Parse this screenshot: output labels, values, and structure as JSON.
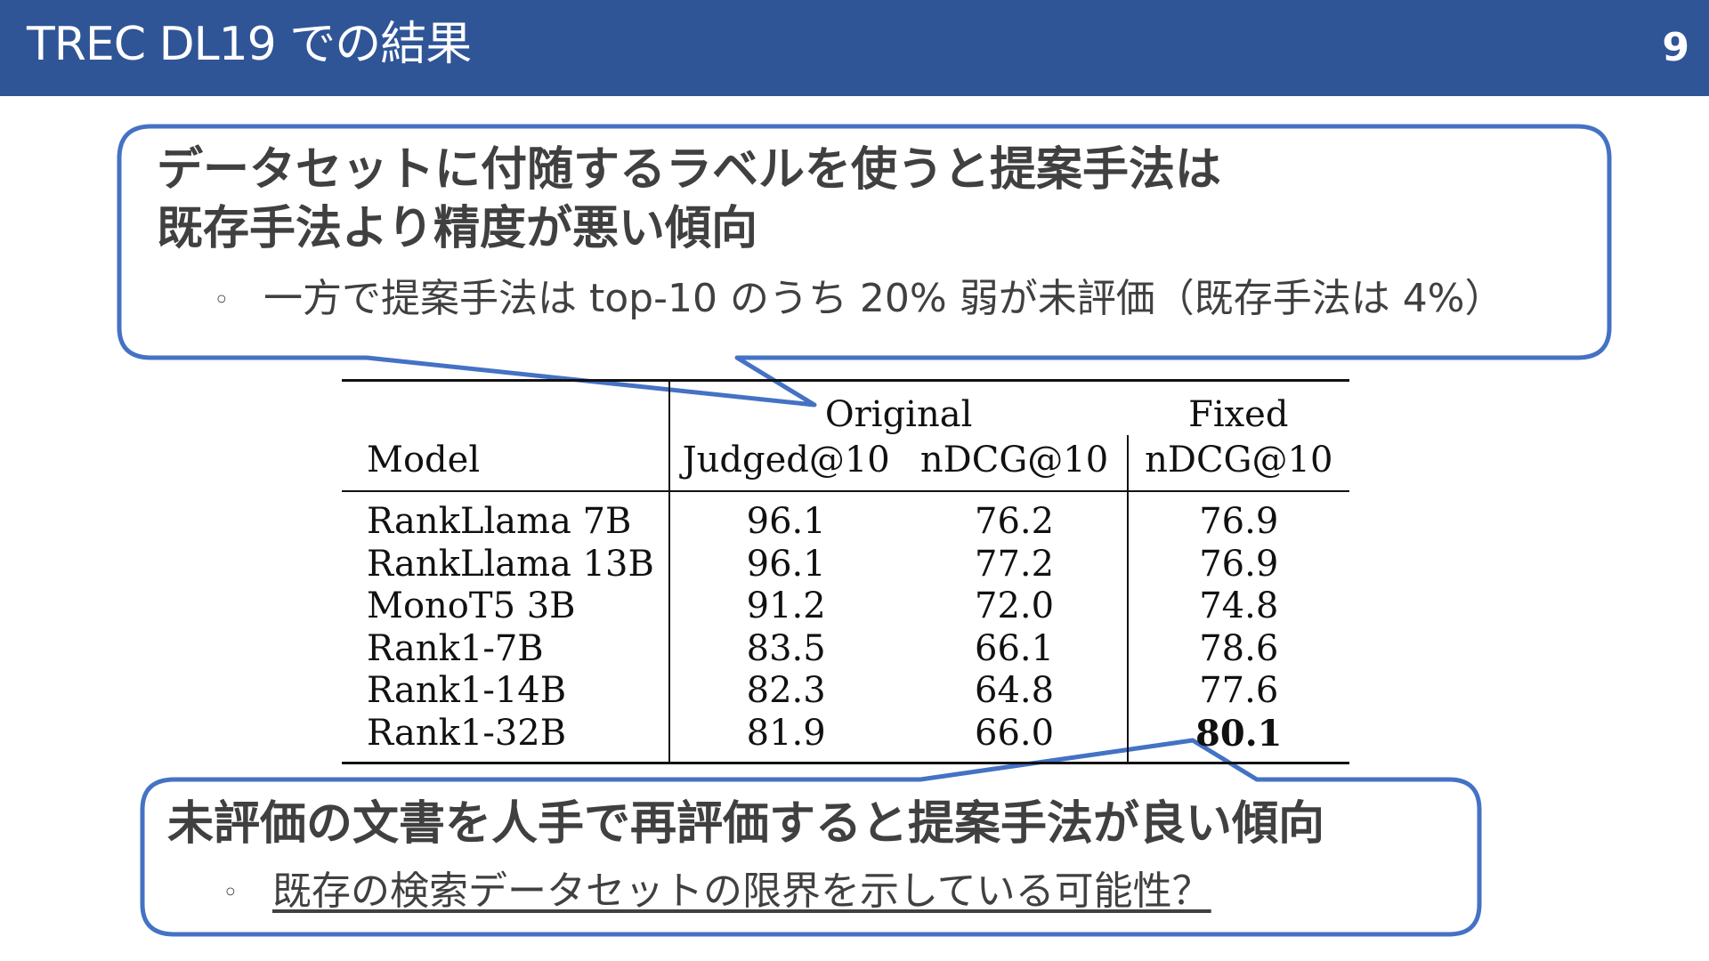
{
  "header": {
    "title": "TREC DL19 での結果",
    "page_number": "9"
  },
  "callout_top": {
    "headline_line1": "データセットに付随するラベルを使うと提案手法は",
    "headline_line2": "既存手法より精度が悪い傾向",
    "bullet": "◦",
    "sub": "一方で提案手法は top-10 のうち 20% 弱が未評価（既存手法は 4%）"
  },
  "callout_bottom": {
    "headline": "未評価の文書を人手で再評価すると提案手法が良い傾向",
    "bullet": "◦",
    "sub": "既存の検索データセットの限界を示している可能性？"
  },
  "table": {
    "group_original": "Original",
    "group_fixed": "Fixed",
    "col_model": "Model",
    "col_judged": "Judged@10",
    "col_ndcg_orig": "nDCG@10",
    "col_ndcg_fixed": "nDCG@10",
    "rows": [
      {
        "model": "RankLlama 7B",
        "judged": "96.1",
        "ndcg": "76.2",
        "fixed": "76.9"
      },
      {
        "model": "RankLlama 13B",
        "judged": "96.1",
        "ndcg": "77.2",
        "fixed": "76.9"
      },
      {
        "model": "MonoT5 3B",
        "judged": "91.2",
        "ndcg": "72.0",
        "fixed": "74.8"
      },
      {
        "model": "Rank1-7B",
        "judged": "83.5",
        "ndcg": "66.1",
        "fixed": "78.6"
      },
      {
        "model": "Rank1-14B",
        "judged": "82.3",
        "ndcg": "64.8",
        "fixed": "77.6"
      },
      {
        "model": "Rank1-32B",
        "judged": "81.9",
        "ndcg": "66.0",
        "fixed": "80.1"
      }
    ]
  },
  "colors": {
    "header_bg": "#2f5597",
    "callout_border": "#4472c4"
  }
}
